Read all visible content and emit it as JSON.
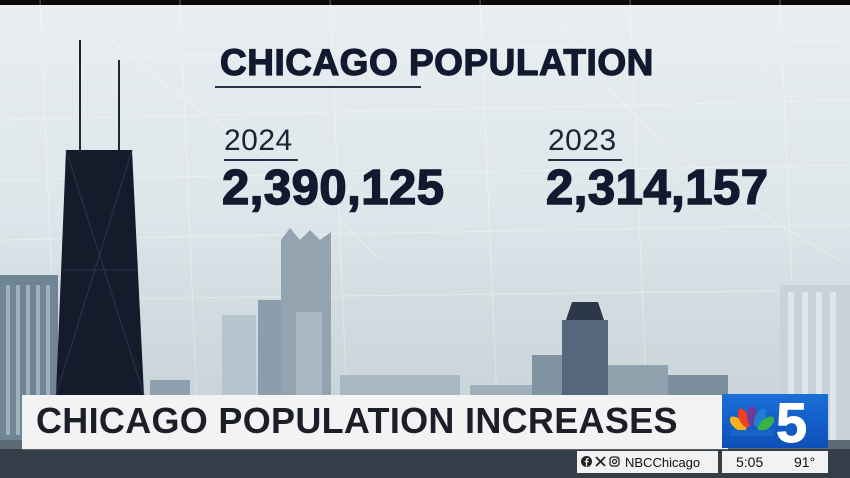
{
  "graphic": {
    "title": "CHICAGO POPULATION",
    "columns": [
      {
        "year": "2024",
        "value": "2,390,125"
      },
      {
        "year": "2023",
        "value": "2,314,157"
      }
    ]
  },
  "lower_third": {
    "headline": "CHICAGO POPULATION INCREASES"
  },
  "station": {
    "logo_number": "5",
    "social_handle": "NBCChicago",
    "social_icons": [
      "facebook-icon",
      "x-icon",
      "instagram-icon"
    ],
    "time": "5:05",
    "temperature": "91°"
  },
  "colors": {
    "title_text": "#13192e",
    "logo_blue": "#1b6fd8",
    "banner_bg": "#f3f3f3"
  }
}
